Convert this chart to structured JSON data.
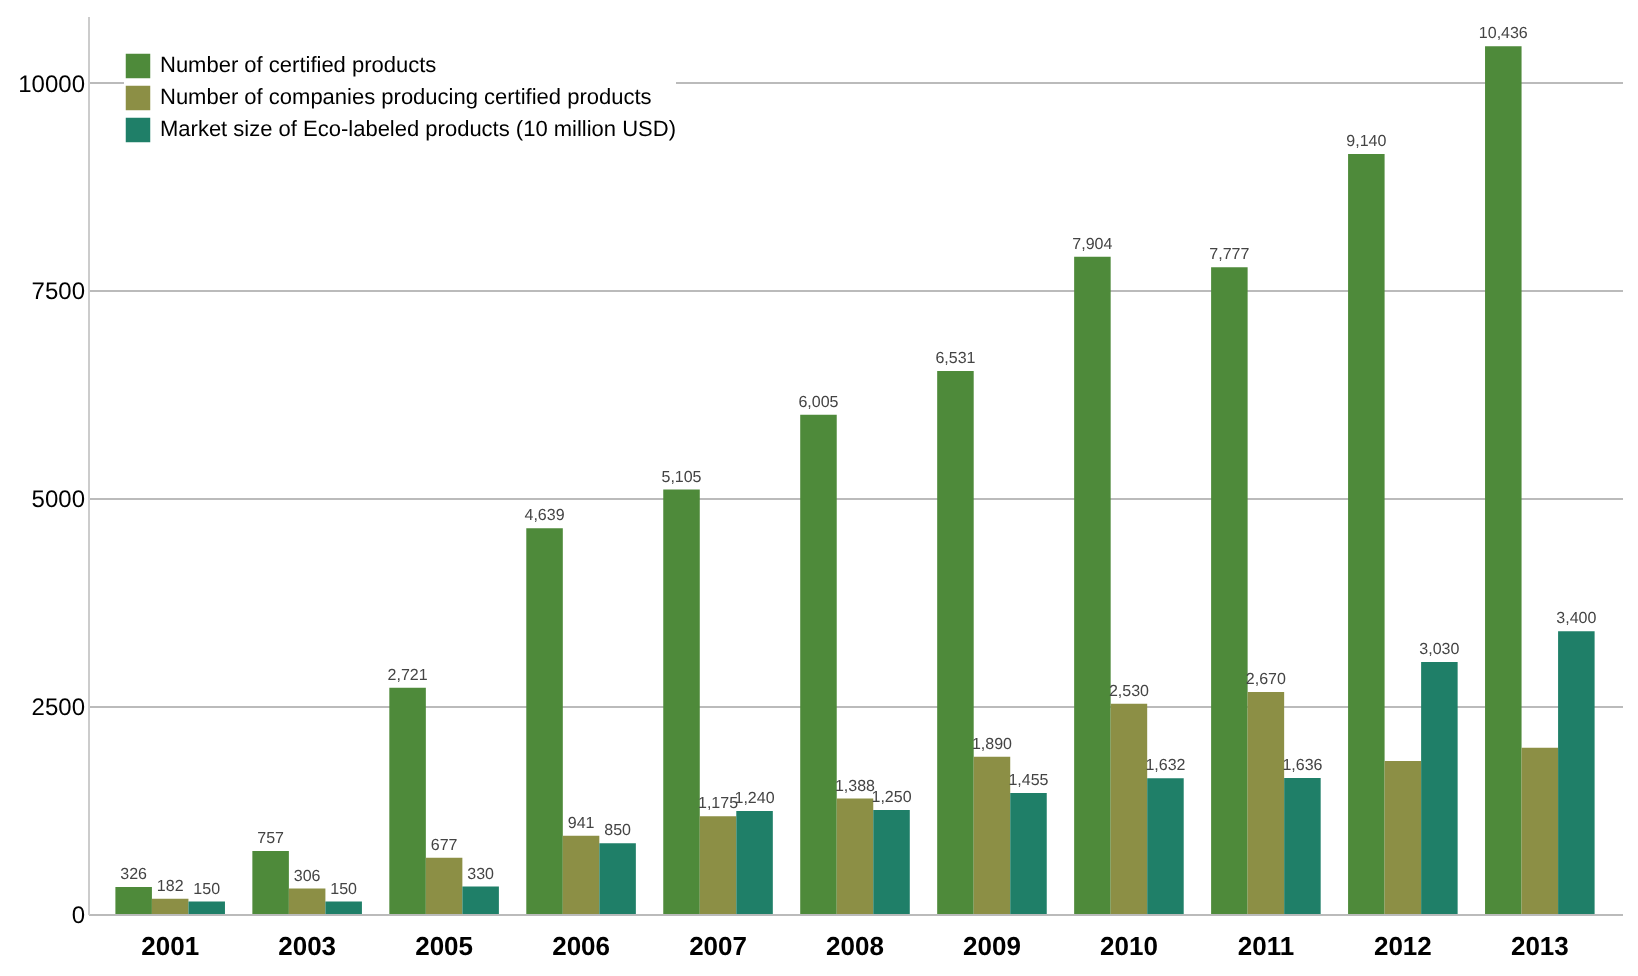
{
  "chart_data": {
    "type": "bar",
    "categories": [
      "2001",
      "2003",
      "2005",
      "2006",
      "2007",
      "2008",
      "2009",
      "2010",
      "2011",
      "2012",
      "2013"
    ],
    "series": [
      {
        "name": "Number of certified products",
        "color": "#4e8a3a",
        "values": [
          326,
          757,
          2721,
          4639,
          5105,
          6005,
          6531,
          7904,
          7777,
          9140,
          10436
        ],
        "value_labels": [
          "326",
          "757",
          "2,721",
          "4,639",
          "5,105",
          "6,005",
          "6,531",
          "7,904",
          "7,777",
          "9,140",
          "10,436"
        ]
      },
      {
        "name": "Number of companies producing certified products",
        "color": "#8c8f45",
        "values": [
          182,
          306,
          677,
          941,
          1175,
          1388,
          1890,
          2530,
          2670,
          1840,
          2000
        ],
        "value_labels": [
          "182",
          "306",
          "677",
          "941",
          "1,175",
          "1,388",
          "1,890",
          "2,530",
          "2,670",
          null,
          null
        ]
      },
      {
        "name": "Market size of Eco-labeled products (10 million USD)",
        "color": "#1f7f68",
        "values": [
          150,
          150,
          330,
          850,
          1240,
          1250,
          1455,
          1632,
          1636,
          3030,
          3400
        ],
        "value_labels": [
          "150",
          "150",
          "330",
          "850",
          "1,240",
          "1,250",
          "1,455",
          "1,632",
          "1,636",
          "3,030",
          "3,400"
        ]
      }
    ],
    "ylim": [
      0,
      10800
    ],
    "yticks": [
      0,
      2500,
      5000,
      7500,
      10000
    ],
    "grid": "y",
    "legend": "top left"
  }
}
